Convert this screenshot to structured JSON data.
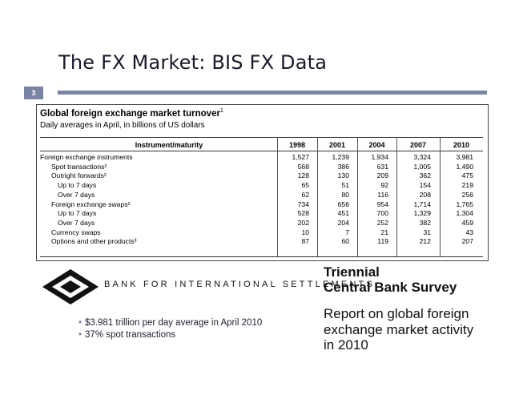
{
  "slide": {
    "title": "The FX Market:   BIS FX Data",
    "number": "3",
    "accent_color": "#7a84a3"
  },
  "table": {
    "title": "Global foreign exchange market turnover",
    "title_footnote": "1",
    "subtitle": "Daily averages in April, in billions of US dollars",
    "column_header": "Instrument/maturity",
    "years": [
      "1998",
      "2001",
      "2004",
      "2007",
      "2010"
    ],
    "rows": [
      {
        "label": "Foreign exchange instruments",
        "values": [
          "1,527",
          "1,239",
          "1,934",
          "3,324",
          "3,981"
        ]
      },
      {
        "label": "Spot transactions²",
        "values": [
          "568",
          "386",
          "631",
          "1,005",
          "1,490"
        ]
      },
      {
        "label": "Outright forwards²",
        "values": [
          "128",
          "130",
          "209",
          "362",
          "475"
        ]
      },
      {
        "label": "Up to 7 days",
        "values": [
          "65",
          "51",
          "92",
          "154",
          "219"
        ]
      },
      {
        "label": "Over 7 days",
        "values": [
          "62",
          "80",
          "116",
          "208",
          "256"
        ]
      },
      {
        "label": "Foreign exchange swaps²",
        "values": [
          "734",
          "656",
          "954",
          "1,714",
          "1,765"
        ]
      },
      {
        "label": "Up to 7 days",
        "values": [
          "528",
          "451",
          "700",
          "1,329",
          "1,304"
        ]
      },
      {
        "label": "Over 7 days",
        "values": [
          "202",
          "204",
          "252",
          "382",
          "459"
        ]
      },
      {
        "label": "Currency swaps",
        "values": [
          "10",
          "7",
          "21",
          "31",
          "43"
        ]
      },
      {
        "label": "Options and other products³",
        "values": [
          "87",
          "60",
          "119",
          "212",
          "207"
        ]
      }
    ]
  },
  "bis": {
    "name": "BANK FOR INTERNATIONAL SETTLEMENTS"
  },
  "survey": {
    "title_line1": "Triennial",
    "title_line2": "Central Bank Survey",
    "desc_line1": "Report on global foreign",
    "desc_line2": "exchange market activity",
    "desc_line3": "in 2010"
  },
  "bullets": [
    "$3.981 trillion per day average in April 2010",
    "37% spot transactions"
  ]
}
